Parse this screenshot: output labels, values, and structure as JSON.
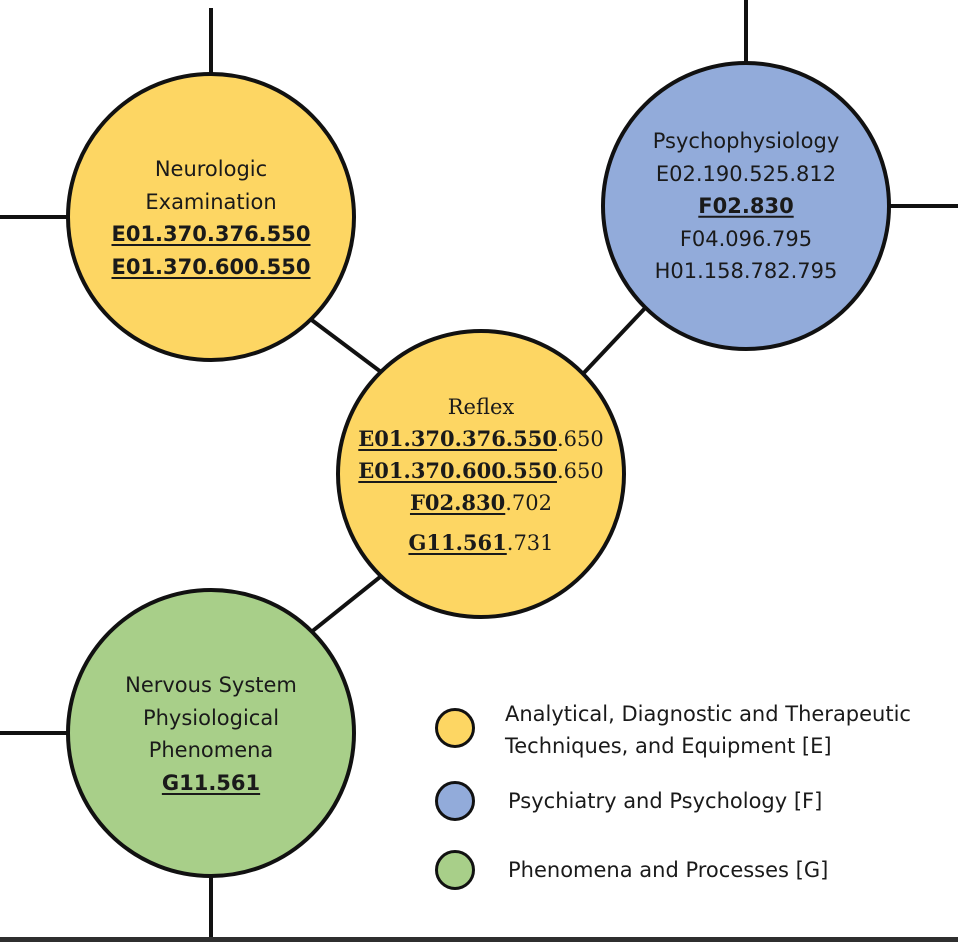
{
  "colors": {
    "category_E": "#FDD663",
    "category_F": "#92ABDA",
    "category_G": "#A8CF89",
    "outline": "#111111"
  },
  "nodes": {
    "neurologic": {
      "title_1": "Neurologic",
      "title_2": "Examination",
      "code_1": "E01.370.376.550",
      "code_2": "E01.370.600.550"
    },
    "psychophysiology": {
      "title": "Psychophysiology",
      "code_1": "E02.190.525.812",
      "code_2": "F02.830",
      "code_3": "F04.096.795",
      "code_4": "H01.158.782.795"
    },
    "reflex": {
      "title": "Reflex",
      "row_1_main": "E01.370.376.550",
      "row_1_suffix": ".650",
      "row_2_main": "E01.370.600.550",
      "row_2_suffix": ".650",
      "row_3_main": "F02.830",
      "row_3_suffix": ".702",
      "row_4_main": "G11.561",
      "row_4_suffix": ".731"
    },
    "nervous": {
      "title_1": "Nervous System",
      "title_2": "Physiological",
      "title_3": "Phenomena",
      "code_1": "G11.561"
    }
  },
  "legend": {
    "item_E_line_1": "Analytical, Diagnostic and Therapeutic",
    "item_E_line_2": "Techniques, and Equipment [E]",
    "item_F": "Psychiatry and Psychology [F]",
    "item_G": "Phenomena and Processes [G]"
  }
}
